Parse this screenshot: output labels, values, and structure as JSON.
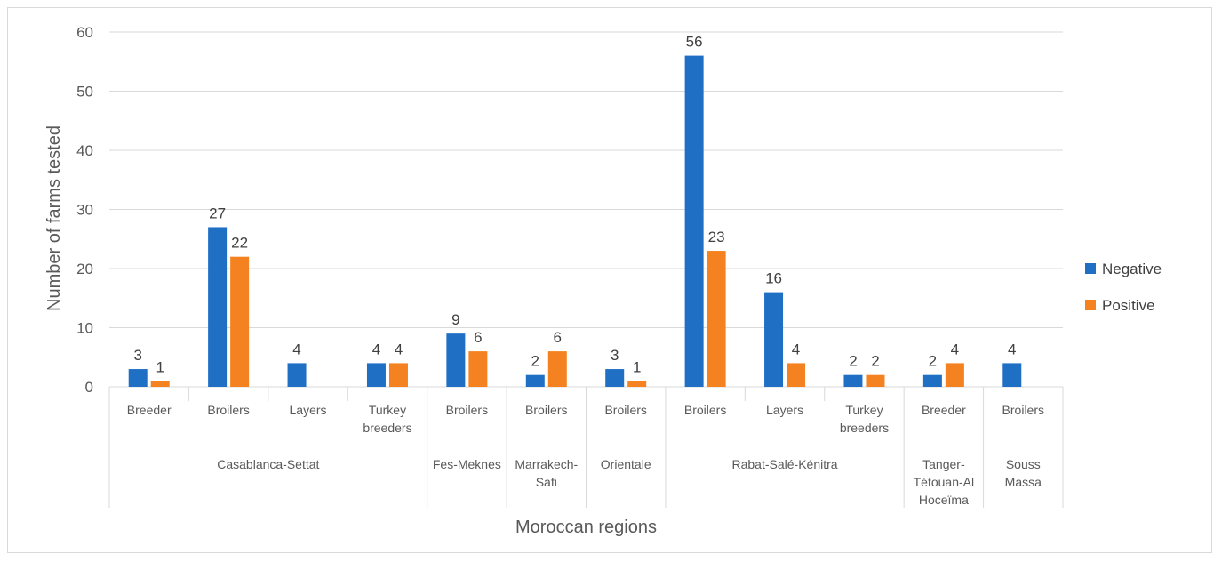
{
  "chart_data": {
    "type": "bar",
    "ylabel": "Number of farms tested",
    "xlabel": "Moroccan regions",
    "ylim": [
      0,
      60
    ],
    "yticks": [
      0,
      10,
      20,
      30,
      40,
      50,
      60
    ],
    "grid": true,
    "legend_position": "right",
    "groups": [
      {
        "region": [
          "Casablanca-Settat"
        ],
        "categories": [
          [
            "Breeder"
          ],
          [
            "Broilers"
          ],
          [
            "Layers"
          ],
          [
            "Turkey",
            "breeders"
          ]
        ]
      },
      {
        "region": [
          "Fes-Meknes"
        ],
        "categories": [
          [
            "Broilers"
          ]
        ]
      },
      {
        "region": [
          "Marrakech-",
          "Safi"
        ],
        "categories": [
          [
            "Broilers"
          ]
        ]
      },
      {
        "region": [
          "Orientale"
        ],
        "categories": [
          [
            "Broilers"
          ]
        ]
      },
      {
        "region": [
          "Rabat-Salé-Kénitra"
        ],
        "categories": [
          [
            "Broilers"
          ],
          [
            "Layers"
          ],
          [
            "Turkey",
            "breeders"
          ]
        ]
      },
      {
        "region": [
          "Tanger-",
          "Tétouan-Al",
          "Hoceïma"
        ],
        "categories": [
          [
            "Breeder"
          ]
        ]
      },
      {
        "region": [
          "Souss",
          "Massa"
        ],
        "categories": [
          [
            "Broilers"
          ]
        ]
      }
    ],
    "series": [
      {
        "name": "Negative",
        "color": "#1f6fc5",
        "values": [
          3,
          27,
          4,
          4,
          9,
          2,
          3,
          56,
          16,
          2,
          2,
          4
        ]
      },
      {
        "name": "Positive",
        "color": "#f58220",
        "values": [
          1,
          22,
          null,
          4,
          6,
          6,
          1,
          23,
          4,
          2,
          4,
          null
        ]
      }
    ]
  }
}
